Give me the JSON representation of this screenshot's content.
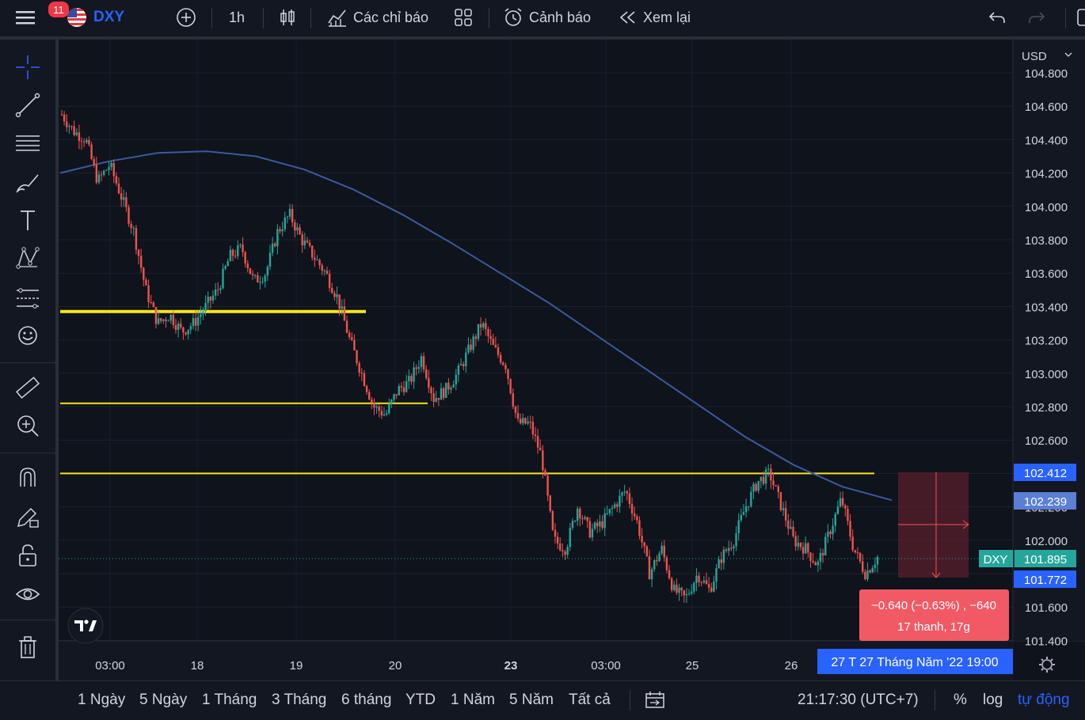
{
  "toolbar": {
    "notifications": "11",
    "symbol": "DXY",
    "interval": "1h",
    "indicators": "Các chỉ báo",
    "alerts": "Cảnh báo",
    "replay": "Xem lại"
  },
  "axis": {
    "currency": "USD",
    "price_labels": [
      "104.800",
      "104.600",
      "104.400",
      "104.200",
      "104.000",
      "103.800",
      "103.600",
      "103.400",
      "103.200",
      "103.000",
      "102.800",
      "102.600",
      "102.400",
      "102.200",
      "102.000",
      "101.800",
      "101.600",
      "101.400"
    ],
    "time_labels": [
      "03:00",
      "18",
      "19",
      "20",
      "23",
      "03:00",
      "25",
      "26"
    ]
  },
  "markers": {
    "upper": "102.412",
    "ma": "102.239",
    "last_symbol": "DXY",
    "last": "101.895",
    "lower": "101.772"
  },
  "measure": {
    "line1": "−0.640 (−0.63%) , −640",
    "line2": "17 thanh, 17g"
  },
  "crosshair_date": "27 T   27 Tháng Năm '22    19:00",
  "ranges": [
    "1 Ngày",
    "5 Ngày",
    "1 Tháng",
    "3 Tháng",
    "6 tháng",
    "YTD",
    "1 Năm",
    "5 Năm",
    "Tất cả"
  ],
  "clock": "21:17:30 (UTC+7)",
  "scale": {
    "percent": "%",
    "log": "log",
    "auto": "tự động"
  },
  "colors": {
    "up": "#26a69a",
    "down": "#ef5350",
    "ma": "#3a5b9c",
    "level": "#f5e31f",
    "accent": "#2962ff"
  },
  "chart_data": {
    "type": "candlestick",
    "symbol": "DXY",
    "interval": "1h",
    "ylim": [
      101.35,
      104.85
    ],
    "levels": [
      103.37,
      102.82,
      102.4
    ],
    "moving_average": [
      104.2,
      104.27,
      104.32,
      104.33,
      104.3,
      104.22,
      104.1,
      103.95,
      103.78,
      103.6,
      103.42,
      103.22,
      103.02,
      102.82,
      102.62,
      102.45,
      102.32,
      102.24
    ],
    "close_path": [
      104.55,
      104.45,
      104.4,
      104.15,
      104.25,
      104.05,
      103.85,
      103.5,
      103.3,
      103.35,
      103.25,
      103.3,
      103.4,
      103.5,
      103.7,
      103.75,
      103.55,
      103.6,
      103.85,
      103.95,
      103.8,
      103.7,
      103.6,
      103.45,
      103.2,
      103.0,
      102.8,
      102.75,
      102.9,
      102.95,
      103.1,
      102.85,
      102.9,
      103.0,
      103.15,
      103.3,
      103.15,
      103.05,
      102.7,
      102.7,
      102.5,
      102.0,
      101.95,
      102.2,
      102.05,
      102.1,
      102.2,
      102.3,
      102.1,
      101.8,
      101.95,
      101.7,
      101.65,
      101.8,
      101.7,
      101.9,
      102.0,
      102.2,
      102.35,
      102.4,
      102.2,
      102.0,
      101.95,
      101.85,
      102.05,
      102.25,
      101.95,
      101.8,
      101.9
    ]
  }
}
